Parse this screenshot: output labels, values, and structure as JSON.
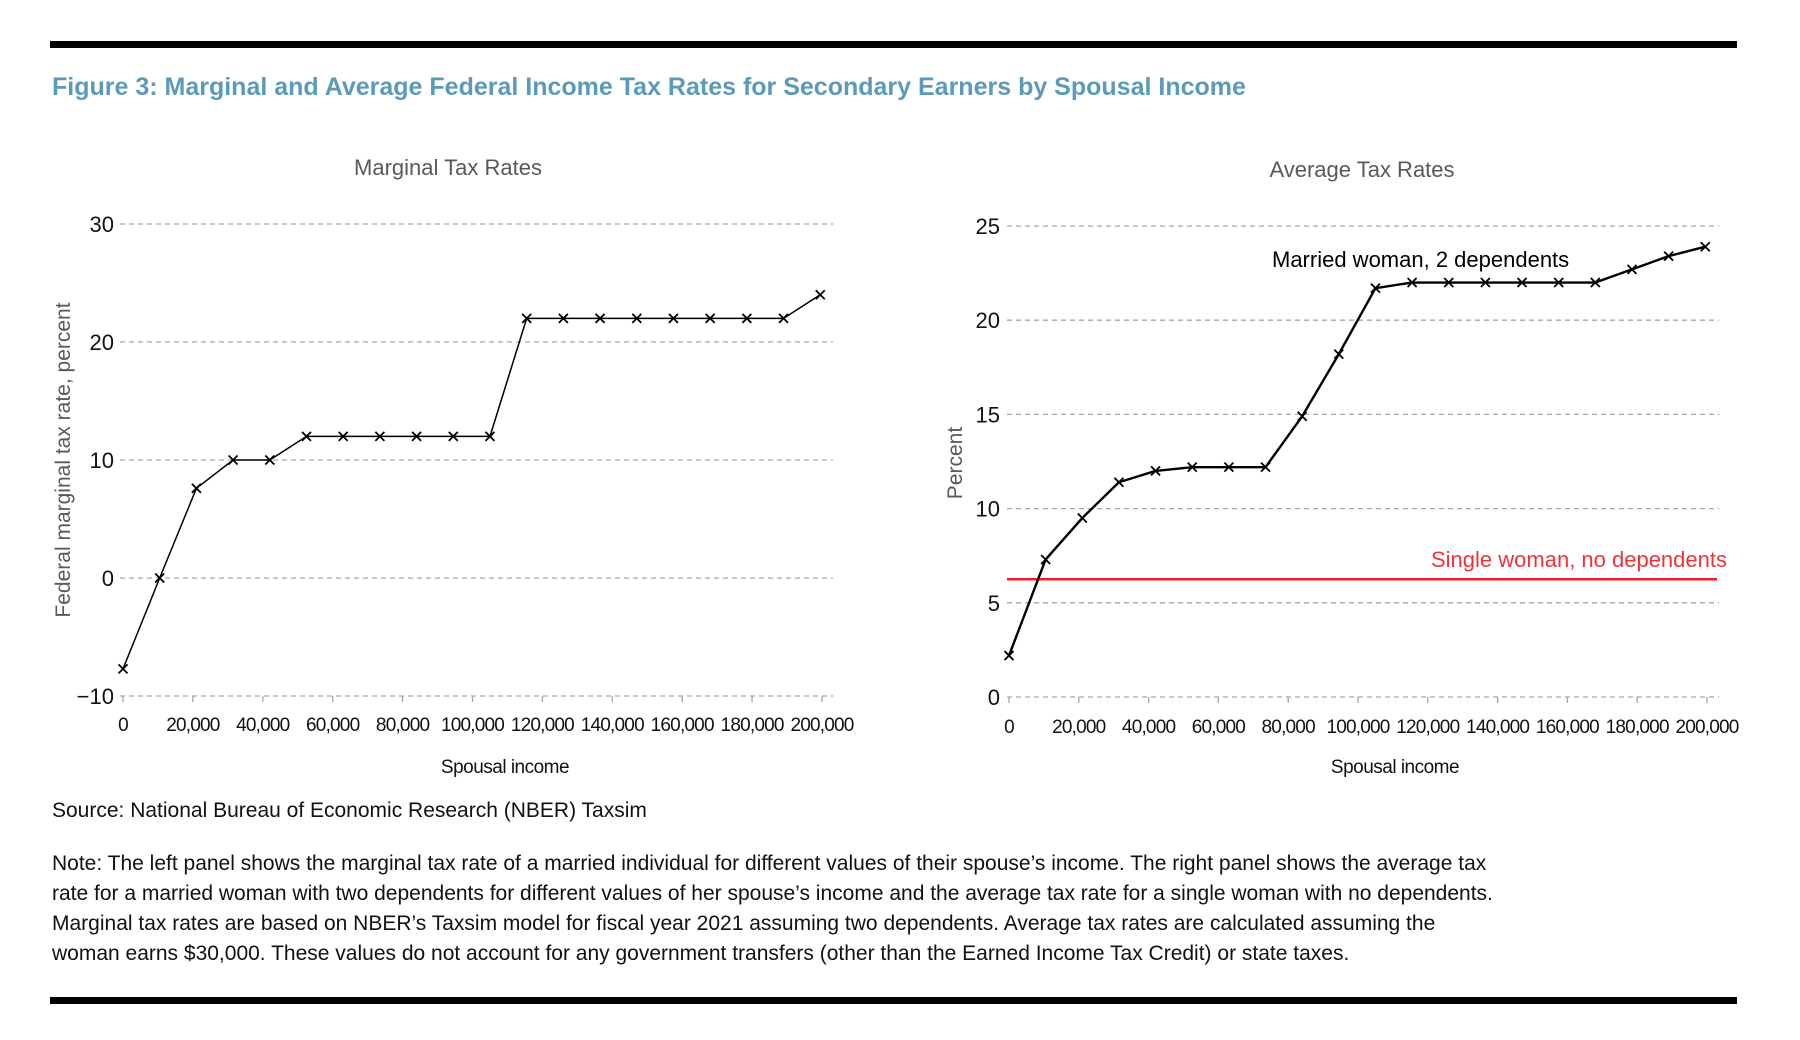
{
  "figure": {
    "title": "Figure 3: Marginal and Average Federal Income Tax Rates for Secondary Earners by Spousal Income",
    "source": "Source: National Bureau of Economic Research (NBER) Taxsim",
    "note_lines": [
      "Note: The left panel shows the marginal tax rate of a married individual for different values of their spouse’s income. The right panel shows the average tax",
      "rate for a married woman with two dependents for different values of her spouse’s income and the average tax rate for a single woman with no dependents.",
      "Marginal tax rates are based on NBER’s Taxsim model for fiscal year 2021 assuming two dependents. Average tax rates are calculated assuming the",
      "woman earns $30,000. These values do not account for any government transfers (other than the Earned Income Tax Credit) or state taxes."
    ]
  },
  "colors": {
    "title": "#5b9ab8",
    "series": "#000000",
    "reference": "#ee1c25",
    "grid": "#a6a6a6"
  },
  "chart_data": [
    {
      "type": "line",
      "title": "Marginal Tax Rates",
      "xlabel": "Spousal income",
      "ylabel": "Federal marginal tax rate, percent",
      "xlim": [
        0,
        200000
      ],
      "ylim": [
        -10,
        30
      ],
      "xticks": [
        0,
        20000,
        40000,
        60000,
        80000,
        100000,
        120000,
        140000,
        160000,
        180000,
        200000
      ],
      "xtick_labels": [
        "0",
        "20,000",
        "40,000",
        "60,000",
        "80,000",
        "100,000",
        "120,000",
        "140,000",
        "160,000",
        "180,000",
        "200,000"
      ],
      "yticks": [
        -10,
        0,
        10,
        20,
        30
      ],
      "ytick_labels": [
        "−10",
        "0",
        "10",
        "20",
        "30"
      ],
      "grid": true,
      "marker": "x",
      "series": [
        {
          "name": "Marginal tax rate",
          "x": [
            0,
            10500,
            21000,
            31500,
            42000,
            52500,
            63000,
            73500,
            84000,
            94500,
            105000,
            115500,
            126000,
            136500,
            147000,
            157500,
            168000,
            178500,
            189000,
            199500
          ],
          "y": [
            -7.7,
            0,
            7.6,
            10,
            10,
            12,
            12,
            12,
            12,
            12,
            12,
            22,
            22,
            22,
            22,
            22,
            22,
            22,
            22,
            24
          ]
        }
      ]
    },
    {
      "type": "line",
      "title": "Average Tax Rates",
      "xlabel": "Spousal income",
      "ylabel": "Percent",
      "xlim": [
        0,
        200000
      ],
      "ylim": [
        0,
        25
      ],
      "xticks": [
        0,
        20000,
        40000,
        60000,
        80000,
        100000,
        120000,
        140000,
        160000,
        180000,
        200000
      ],
      "xtick_labels": [
        "0",
        "20,000",
        "40,000",
        "60,000",
        "80,000",
        "100,000",
        "120,000",
        "140,000",
        "160,000",
        "180,000",
        "200,000"
      ],
      "yticks": [
        0,
        5,
        10,
        15,
        20,
        25
      ],
      "ytick_labels": [
        "0",
        "5",
        "10",
        "15",
        "20",
        "25"
      ],
      "grid": true,
      "marker": "x",
      "series": [
        {
          "name": "Married woman, 2 dependents",
          "x": [
            0,
            10500,
            21000,
            31500,
            42000,
            52500,
            63000,
            73500,
            84000,
            94500,
            105000,
            115500,
            126000,
            136500,
            147000,
            157500,
            168000,
            178500,
            189000,
            199500
          ],
          "y": [
            2.2,
            7.3,
            9.5,
            11.4,
            12.0,
            12.2,
            12.2,
            12.2,
            14.9,
            18.2,
            21.7,
            22.0,
            22.0,
            22.0,
            22.0,
            22.0,
            22.0,
            22.7,
            23.4,
            23.9
          ]
        }
      ],
      "reference_lines": [
        {
          "name": "Single woman, no dependents",
          "y": 6.25
        }
      ],
      "annotations": [
        {
          "text": "Married woman, 2 dependents",
          "target": "series-0"
        },
        {
          "text": "Single woman, no dependents",
          "target": "reference-0"
        }
      ]
    }
  ]
}
